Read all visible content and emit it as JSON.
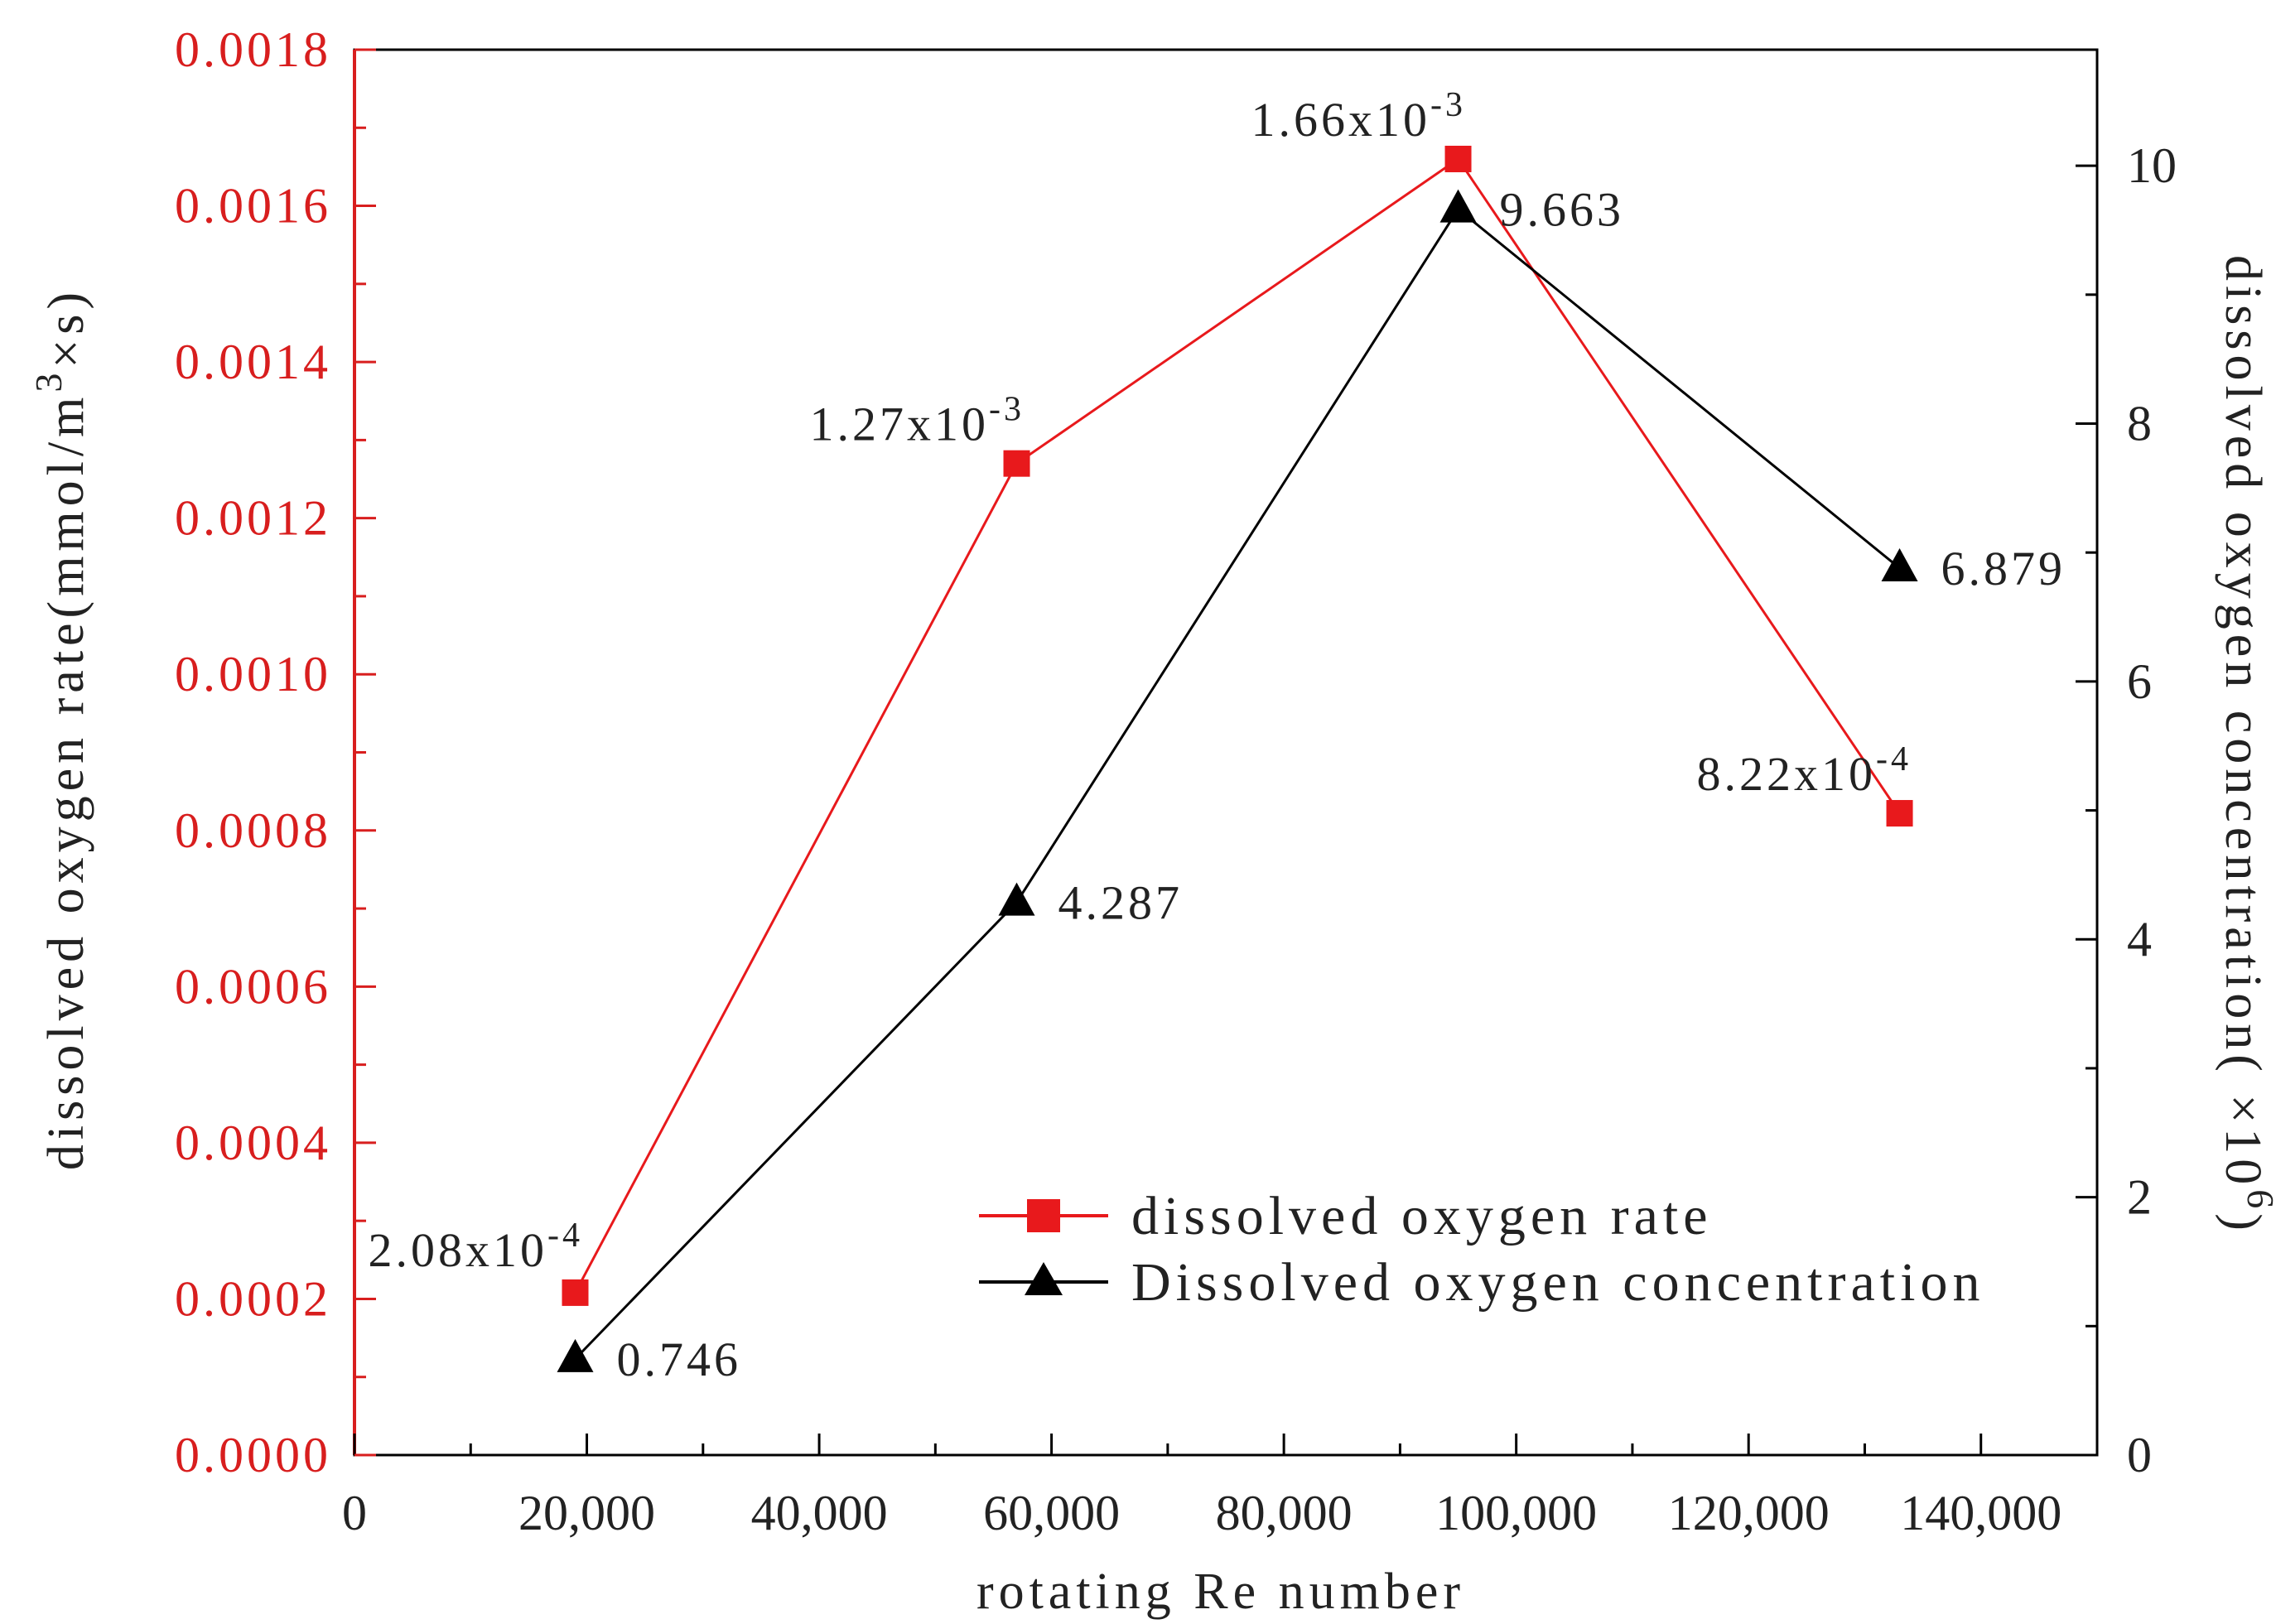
{
  "chart_data": {
    "type": "line",
    "xlabel": "rotating Re number",
    "ylabel_left": "dissolved oxygen rate(mmol/m³×s)",
    "ylabel_left_main": "dissolved oxygen rate(mmol/m",
    "ylabel_left_sup": "3",
    "ylabel_left_tail": "×s)",
    "ylabel_right": "dissolved oxygen concentration(×10⁶)",
    "ylabel_right_main": "dissolved oxygen concentration( ×10",
    "ylabel_right_sup": "6",
    "ylabel_right_tail": ")",
    "xlim": [
      0,
      150000
    ],
    "ylim_left": [
      0,
      0.0018
    ],
    "ylim_right": [
      0,
      10.9
    ],
    "x_ticks": [
      {
        "value": 0,
        "label": "0"
      },
      {
        "value": 20000,
        "label": "20,000"
      },
      {
        "value": 40000,
        "label": "40,000"
      },
      {
        "value": 60000,
        "label": "60,000"
      },
      {
        "value": 80000,
        "label": "80,000"
      },
      {
        "value": 100000,
        "label": "100,000"
      },
      {
        "value": 120000,
        "label": "120,000"
      },
      {
        "value": 140000,
        "label": "140,000"
      }
    ],
    "y_left_ticks": [
      {
        "value": 0,
        "label": "0.0000"
      },
      {
        "value": 0.0002,
        "label": "0.0002"
      },
      {
        "value": 0.0004,
        "label": "0.0004"
      },
      {
        "value": 0.0006,
        "label": "0.0006"
      },
      {
        "value": 0.0008,
        "label": "0.0008"
      },
      {
        "value": 0.001,
        "label": "0.0010"
      },
      {
        "value": 0.0012,
        "label": "0.0012"
      },
      {
        "value": 0.0014,
        "label": "0.0014"
      },
      {
        "value": 0.0016,
        "label": "0.0016"
      },
      {
        "value": 0.0018,
        "label": "0.0018"
      }
    ],
    "y_right_ticks": [
      {
        "value": 0,
        "label": "0"
      },
      {
        "value": 2,
        "label": "2"
      },
      {
        "value": 4,
        "label": "4"
      },
      {
        "value": 6,
        "label": "6"
      },
      {
        "value": 8,
        "label": "8"
      },
      {
        "value": 10,
        "label": "10"
      }
    ],
    "series": [
      {
        "name": "dissolved oxygen rate",
        "axis": "left",
        "color": "#e8191c",
        "marker": "square",
        "x": [
          19000,
          57000,
          95000,
          133000
        ],
        "values": [
          0.000208,
          0.00127,
          0.00166,
          0.000822
        ],
        "labels": [
          {
            "base": "2.08x10",
            "exp": "-4"
          },
          {
            "base": "1.27x10",
            "exp": "-3"
          },
          {
            "base": "1.66x10",
            "exp": "-3"
          },
          {
            "base": "8.22x10",
            "exp": "-4"
          }
        ]
      },
      {
        "name": "Dissolved oxygen concentration",
        "axis": "right",
        "color": "#000000",
        "marker": "triangle",
        "x": [
          19000,
          57000,
          95000,
          133000
        ],
        "values": [
          0.746,
          4.287,
          9.663,
          6.879
        ],
        "labels": [
          {
            "base": "0.746"
          },
          {
            "base": "4.287"
          },
          {
            "base": "9.663"
          },
          {
            "base": "6.879"
          }
        ]
      }
    ],
    "legend_position": "bottom-right",
    "grid": false,
    "colors": {
      "left_axis": "#d81e1e",
      "right_axis": "#222222"
    }
  }
}
